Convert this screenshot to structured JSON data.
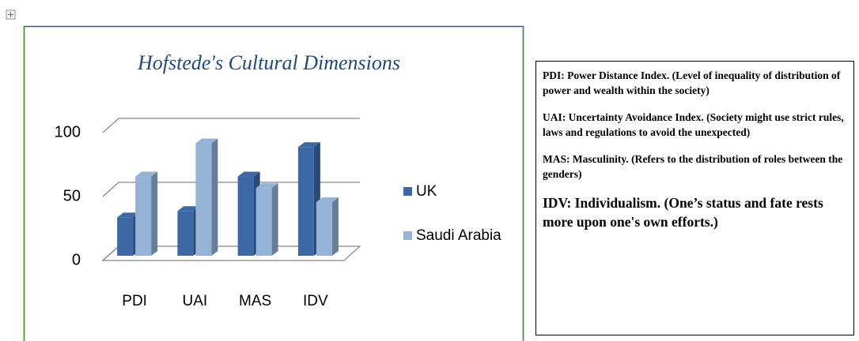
{
  "chart_data": {
    "type": "bar3d",
    "title": "Hofstede's Cultural Dimensions",
    "categories": [
      "PDI",
      "UAI",
      "MAS",
      "IDV"
    ],
    "series": [
      {
        "name": "UK",
        "color": "#3c68a6",
        "values": [
          30,
          35,
          62,
          85
        ]
      },
      {
        "name": "Saudi Arabia",
        "color": "#95b3d7",
        "values": [
          62,
          88,
          53,
          42
        ]
      }
    ],
    "ylim": [
      0,
      100
    ],
    "yticks": [
      0,
      50,
      100
    ],
    "grid": true,
    "legend": "right"
  },
  "notes": [
    "PDI: Power Distance Index. (Level of inequality of distribution of power and wealth within the society)",
    "UAI: Uncertainty Avoidance Index. (Society might use strict rules, laws and regulations to avoid the unexpected)",
    "MAS: Masculinity. (Refers to the distribution of roles between the genders)",
    "IDV: Individualism. (One’s status and fate rests more upon one's own efforts.)"
  ]
}
